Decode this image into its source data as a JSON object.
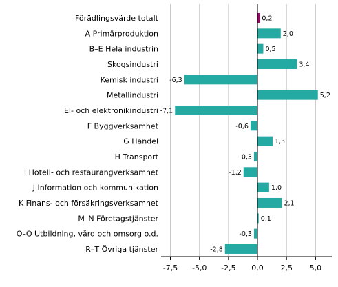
{
  "chart_data": {
    "type": "bar",
    "orientation": "horizontal",
    "categories": [
      "Förädlingsvärde totalt",
      "A Primärproduktion",
      "B–E Hela industrin",
      "Skogsindustri",
      "Kemisk industri",
      "Metallindustri",
      "El- och elektronikindustri",
      "F Byggverksamhet",
      "G Handel",
      "H Transport",
      "I Hotell- och restaurangverksamhet",
      "J Information och kommunikation",
      "K Finans- och försäkringsverksamhet",
      "M–N Företagstjänster",
      "O–Q Utbildning, vård och omsorg o.d.",
      "R–T Övriga tjänster"
    ],
    "values": [
      0.2,
      2.0,
      0.5,
      3.4,
      -6.3,
      5.2,
      -7.1,
      -0.6,
      1.3,
      -0.3,
      -1.2,
      1.0,
      2.1,
      0.1,
      -0.3,
      -2.8
    ],
    "value_labels": [
      "0,2",
      "2,0",
      "0,5",
      "3,4",
      "-6,3",
      "5,2",
      "-7,1",
      "-0,6",
      "1,3",
      "-0,3",
      "-1,2",
      "1,0",
      "2,1",
      "0,1",
      "-0,3",
      "-2,8"
    ],
    "xlim": [
      -8.3,
      6.4
    ],
    "xticks": [
      -7.5,
      -5.0,
      -2.5,
      0.0,
      2.5,
      5.0
    ],
    "xtick_labels": [
      "-7,5",
      "-5,0",
      "-2,5",
      "0,0",
      "2,5",
      "5,0"
    ],
    "grid": "vertical",
    "colors": {
      "default": "#24a9a3",
      "highlight": "#a50070",
      "grid": "#c8c8c8",
      "axis": "#000000"
    },
    "highlight_index": 0
  }
}
